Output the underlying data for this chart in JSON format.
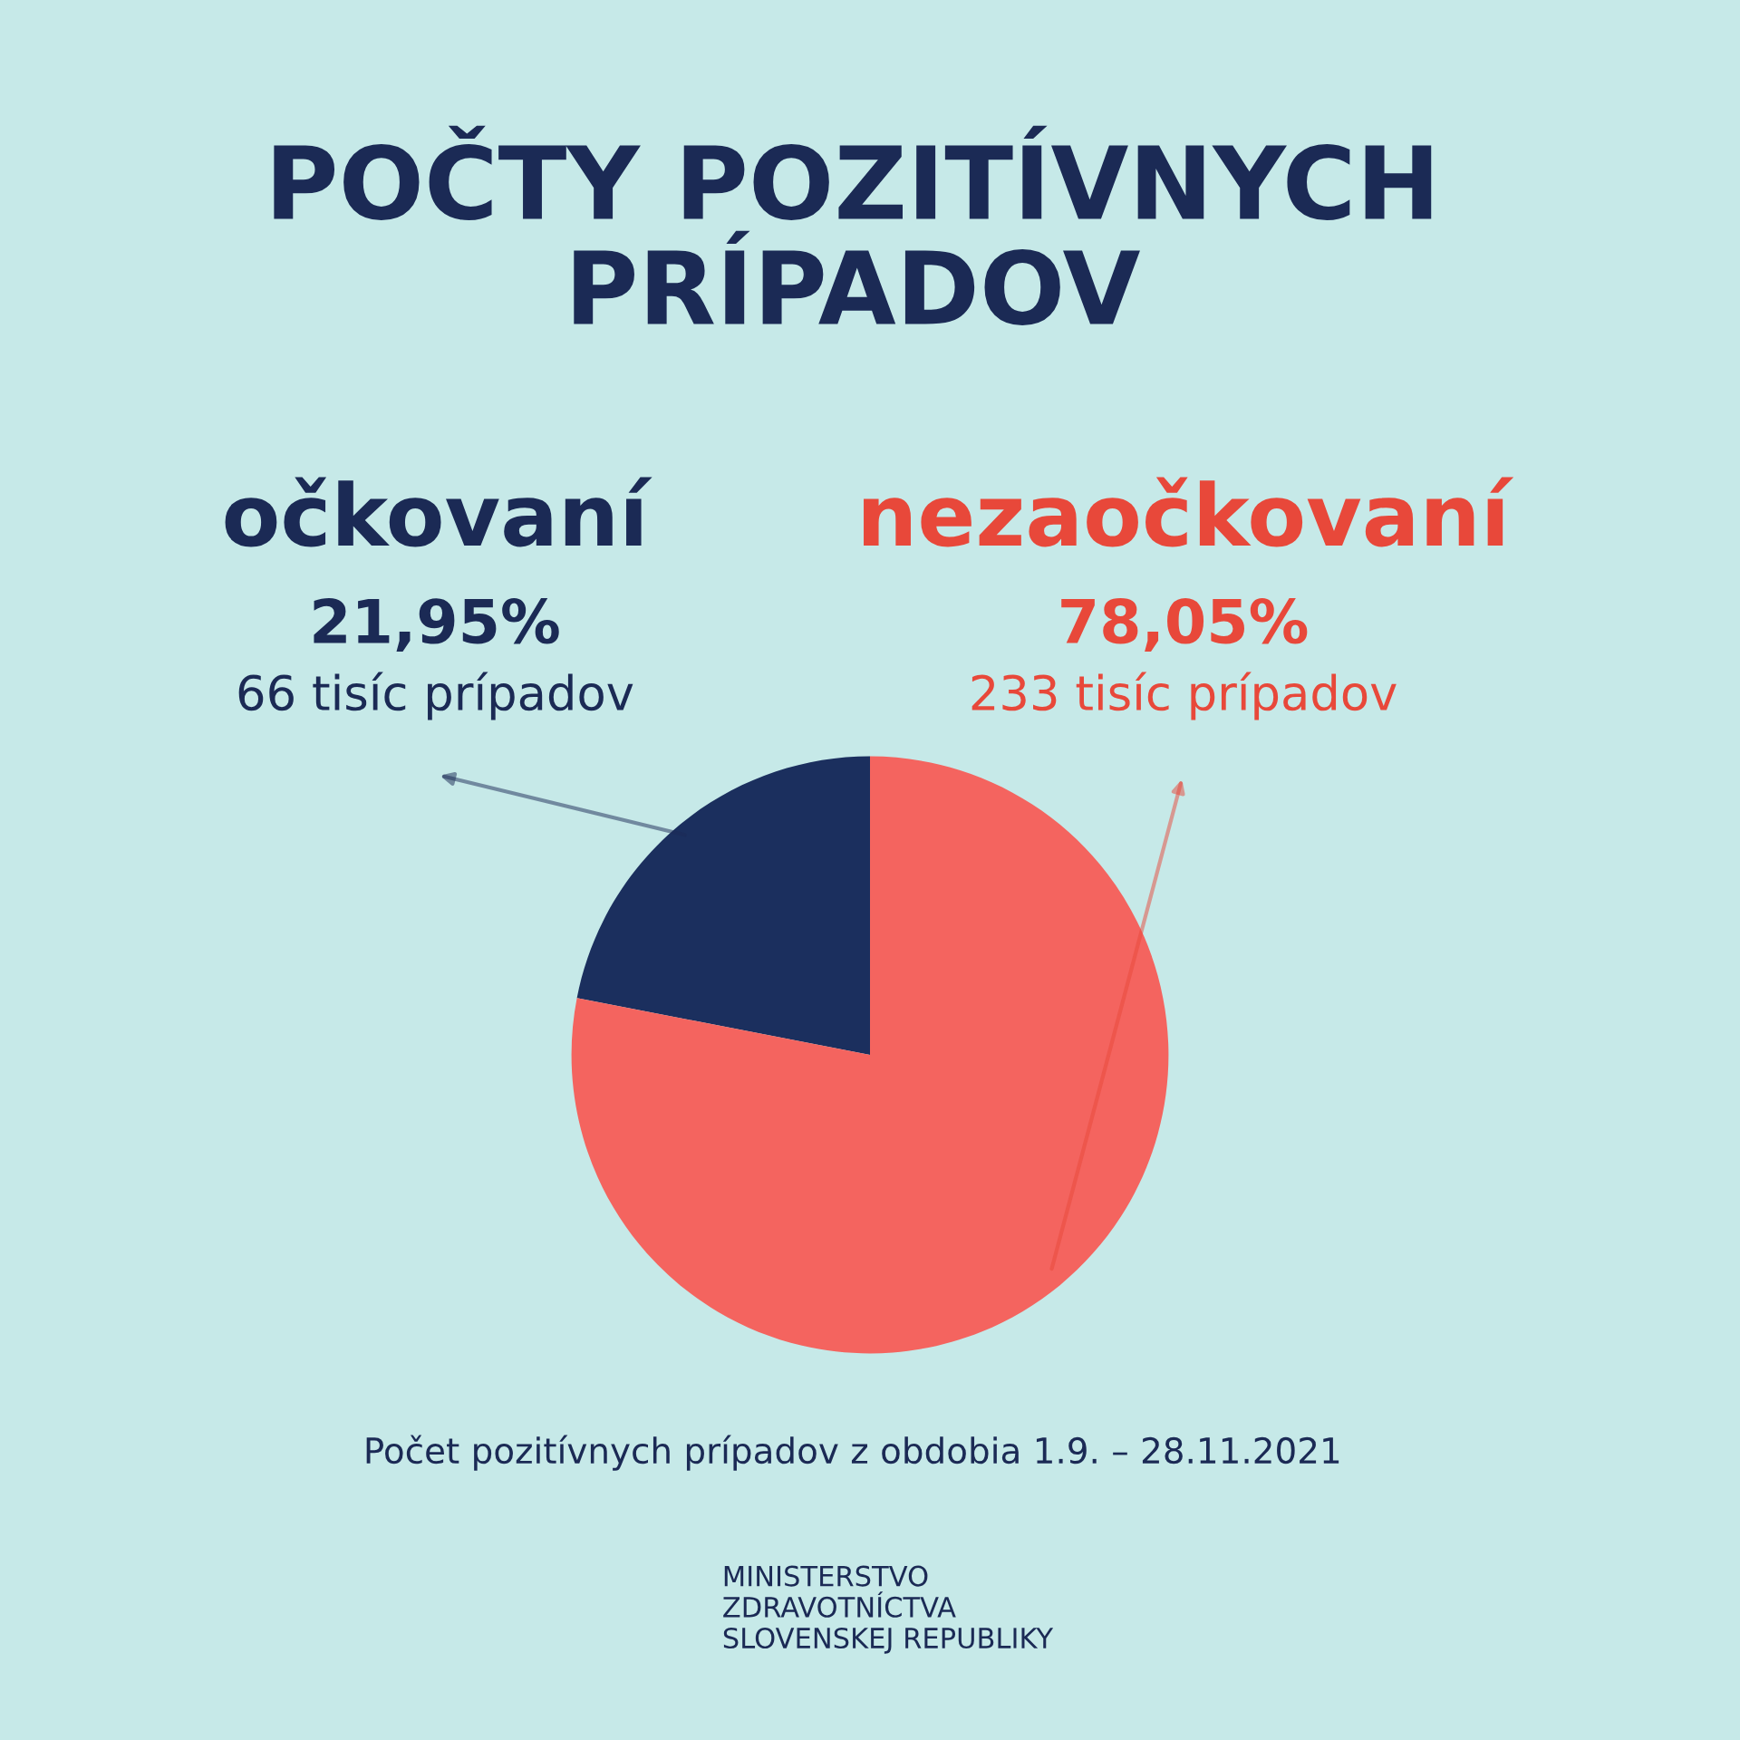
{
  "chart_data": {
    "type": "pie",
    "title": "POČTY POZITÍVNYCH\nPRÍPADOV",
    "categories": [
      "očkovaní",
      "nezaočkovaní"
    ],
    "values": [
      21.95,
      78.05
    ],
    "colors": [
      "#1b2f5e",
      "#f4645f"
    ],
    "value_labels": [
      "21,95%",
      "78,05%"
    ],
    "annotations": [
      "66 tisíc prípadov",
      "233 tisíc prípadov",
      "Počet pozitívnych prípadov z obdobia 1.9. – 28.11.2021",
      "MINISTERSTVO\nZDRAVOTNÍCTVA\nSLOVENSKEJ REPUBLIKY"
    ],
    "legend": false
  }
}
